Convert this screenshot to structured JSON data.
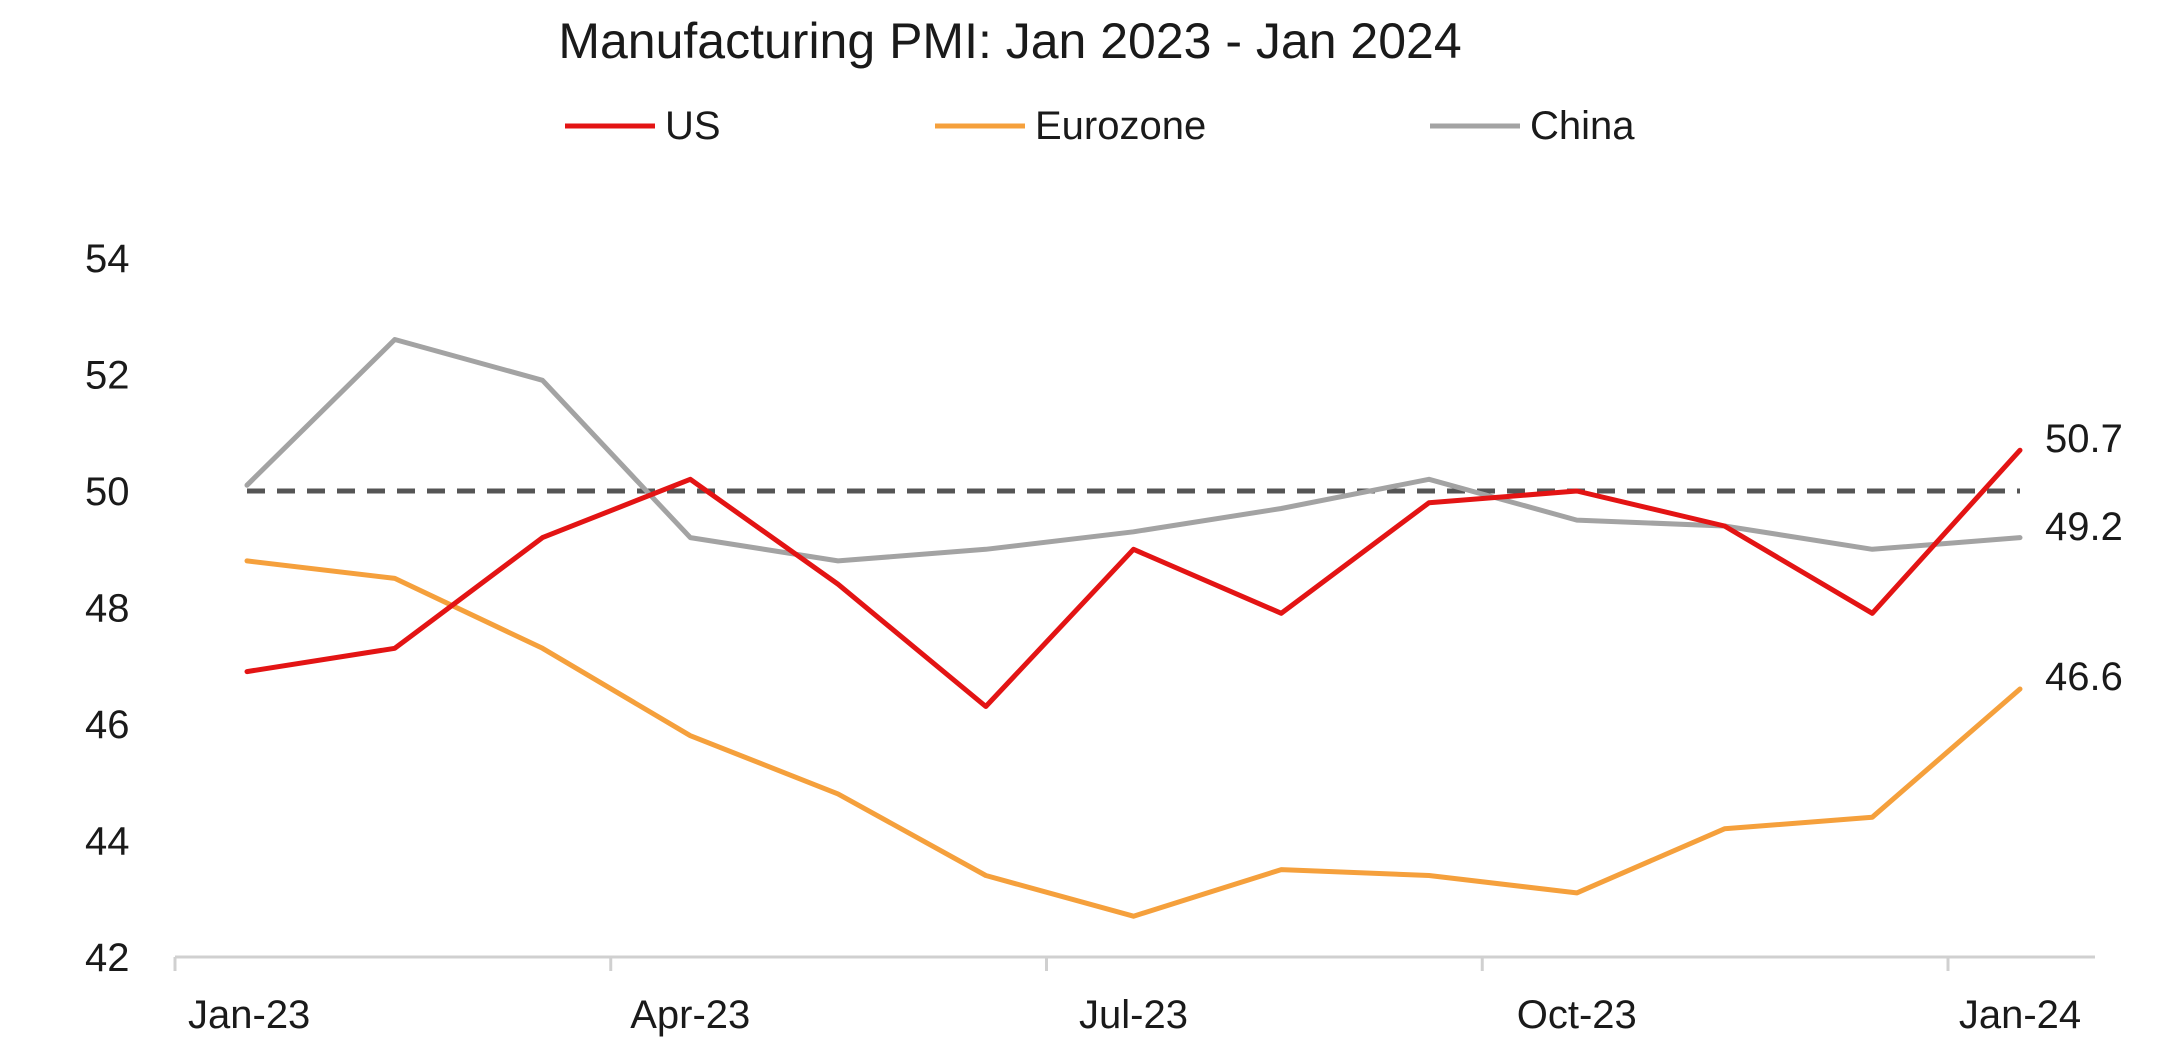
{
  "chart_data": {
    "type": "line",
    "title": "Manufacturing PMI: Jan 2023 - Jan 2024",
    "xlabel": "",
    "ylabel": "",
    "x": [
      "Jan-23",
      "Feb-23",
      "Mar-23",
      "Apr-23",
      "May-23",
      "Jun-23",
      "Jul-23",
      "Aug-23",
      "Sep-23",
      "Oct-23",
      "Nov-23",
      "Dec-23",
      "Jan-24"
    ],
    "x_tick_labels": [
      "Jan-23",
      "Apr-23",
      "Jul-23",
      "Oct-23",
      "Jan-24"
    ],
    "ylim": [
      42,
      54
    ],
    "y_ticks": [
      42,
      44,
      46,
      48,
      50,
      52,
      54
    ],
    "grid": false,
    "legend_position": "top",
    "reference_line": {
      "value": 50,
      "style": "dashed",
      "color": "#555555"
    },
    "series": [
      {
        "name": "US",
        "color": "#e31414",
        "values": [
          46.9,
          47.3,
          49.2,
          50.2,
          48.4,
          46.3,
          49.0,
          47.9,
          49.8,
          50.0,
          49.4,
          47.9,
          50.7
        ],
        "end_label": "50.7"
      },
      {
        "name": "Eurozone",
        "color": "#f5a03c",
        "values": [
          48.8,
          48.5,
          47.3,
          45.8,
          44.8,
          43.4,
          42.7,
          43.5,
          43.4,
          43.1,
          44.2,
          44.4,
          46.6
        ],
        "end_label": "46.6"
      },
      {
        "name": "China",
        "color": "#a3a3a3",
        "values": [
          50.1,
          52.6,
          51.9,
          49.2,
          48.8,
          49.0,
          49.3,
          49.7,
          50.2,
          49.5,
          49.4,
          49.0,
          49.2
        ],
        "end_label": "49.2"
      }
    ]
  }
}
